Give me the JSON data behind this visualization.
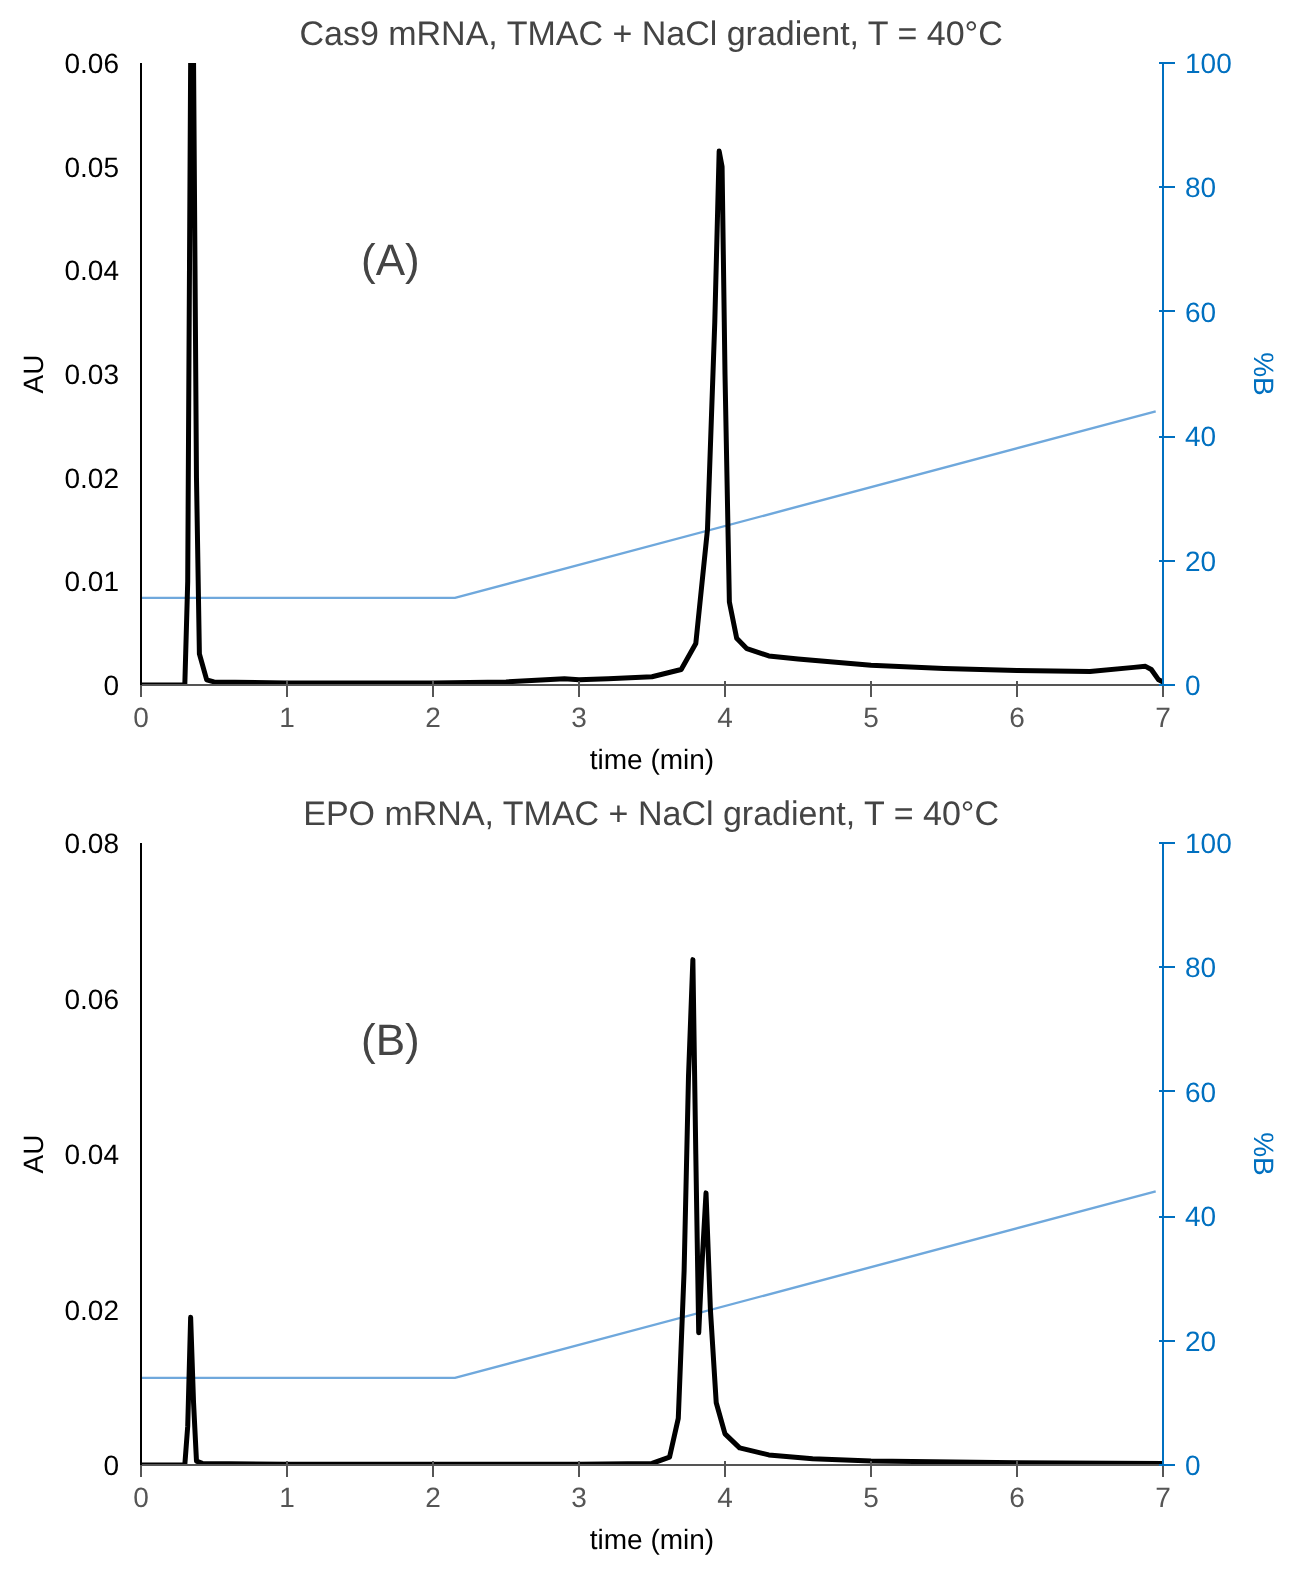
{
  "chart_data": [
    {
      "type": "line",
      "title": "Cas9 mRNA, TMAC + NaCl gradient, T = 40°C",
      "xlabel": "time (min)",
      "ylabel": "AU",
      "y2label": "%B",
      "annotations": [
        "(A)"
      ],
      "xlim": [
        0,
        7
      ],
      "xticks": [
        0,
        1,
        2,
        3,
        4,
        5,
        6,
        7
      ],
      "ylim": [
        0,
        0.06
      ],
      "yticks": [
        0,
        0.01,
        0.02,
        0.03,
        0.04,
        0.05,
        0.06
      ],
      "y2lim": [
        0,
        100
      ],
      "y2ticks": [
        0,
        20,
        40,
        60,
        80,
        100
      ],
      "grid": false,
      "series": [
        {
          "color": "#000000",
          "x": [
            0,
            0.3,
            0.32,
            0.34,
            0.36,
            0.38,
            0.4,
            0.45,
            0.5,
            1,
            2,
            2.5,
            2.9,
            3.0,
            3.2,
            3.5,
            3.7,
            3.8,
            3.88,
            3.93,
            3.96,
            3.98,
            4.0,
            4.03,
            4.08,
            4.15,
            4.3,
            4.5,
            5,
            5.5,
            6,
            6.5,
            6.8,
            6.88,
            6.92,
            6.97,
            7.0
          ],
          "values": [
            0,
            0,
            0.01,
            0.06,
            0.06,
            0.02,
            0.003,
            0.0005,
            0.0003,
            0.0002,
            0.0002,
            0.0003,
            0.0006,
            0.0005,
            0.0006,
            0.0008,
            0.0015,
            0.004,
            0.015,
            0.035,
            0.0515,
            0.05,
            0.03,
            0.008,
            0.0045,
            0.0035,
            0.0028,
            0.0025,
            0.0019,
            0.0016,
            0.0014,
            0.0013,
            0.0017,
            0.0018,
            0.0015,
            0.0005,
            0.0003
          ]
        },
        {
          "color": "#6fa8dc",
          "axis": "y2",
          "x": [
            0,
            2.15,
            6.95
          ],
          "values": [
            14,
            14,
            44
          ]
        }
      ]
    },
    {
      "type": "line",
      "title": "EPO mRNA, TMAC + NaCl gradient, T = 40°C",
      "xlabel": "time (min)",
      "ylabel": "AU",
      "y2label": "%B",
      "annotations": [
        "(B)"
      ],
      "xlim": [
        0,
        7
      ],
      "xticks": [
        0,
        1,
        2,
        3,
        4,
        5,
        6,
        7
      ],
      "ylim": [
        0,
        0.08
      ],
      "yticks": [
        0,
        0.02,
        0.04,
        0.06,
        0.08
      ],
      "y2lim": [
        0,
        100
      ],
      "y2ticks": [
        0,
        20,
        40,
        60,
        80,
        100
      ],
      "grid": false,
      "series": [
        {
          "color": "#000000",
          "x": [
            0,
            0.3,
            0.32,
            0.34,
            0.36,
            0.38,
            0.42,
            1,
            2,
            3,
            3.5,
            3.62,
            3.68,
            3.72,
            3.75,
            3.78,
            3.8,
            3.82,
            3.84,
            3.87,
            3.9,
            3.94,
            4.0,
            4.1,
            4.3,
            4.6,
            5,
            6,
            7
          ],
          "values": [
            0,
            0,
            0.005,
            0.019,
            0.008,
            0.0005,
            0.0002,
            0.0001,
            0.0001,
            0.0001,
            0.0002,
            0.001,
            0.006,
            0.025,
            0.05,
            0.065,
            0.04,
            0.017,
            0.025,
            0.035,
            0.02,
            0.008,
            0.004,
            0.0022,
            0.0013,
            0.0008,
            0.0005,
            0.0003,
            0.0002
          ]
        },
        {
          "color": "#6fa8dc",
          "axis": "y2",
          "x": [
            0,
            2.15,
            6.95
          ],
          "values": [
            14,
            14,
            44
          ]
        }
      ]
    }
  ]
}
